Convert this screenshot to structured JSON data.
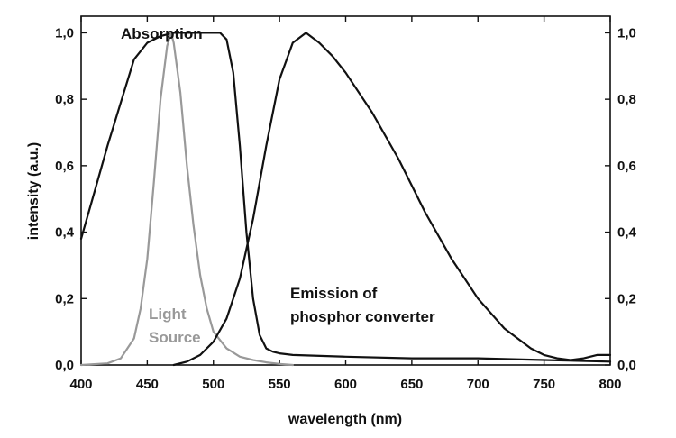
{
  "chart_data": {
    "type": "line",
    "title": "",
    "xlabel": "wavelength (nm)",
    "ylabel": "intensity (a.u.)",
    "xlim": [
      400,
      800
    ],
    "ylim": [
      0,
      1.05
    ],
    "x_ticks": [
      400,
      450,
      500,
      550,
      600,
      650,
      700,
      750,
      800
    ],
    "x_tick_labels": [
      "400",
      "450",
      "500",
      "550",
      "600",
      "650",
      "700",
      "750",
      "800"
    ],
    "y_ticks": [
      0,
      0.2,
      0.4,
      0.6,
      0.8,
      1.0
    ],
    "y_tick_labels": [
      "0,0",
      "0,2",
      "0,4",
      "0,6",
      "0,8",
      "1,0"
    ],
    "right_y_tick_labels": [
      "0,0",
      "0,2",
      "0,4",
      "0,6",
      "0,8",
      "1,0"
    ],
    "grid": false,
    "annotations": {
      "absorption": "Absorption",
      "light_source_line1": "Light",
      "light_source_line2": "Source",
      "emission_line1": "Emission of",
      "emission_line2": "phosphor converter"
    },
    "series": [
      {
        "color": "#111111",
        "x": [
          400,
          410,
          420,
          430,
          440,
          450,
          460,
          470,
          480,
          490,
          500,
          505,
          510,
          515,
          520,
          525,
          530,
          535,
          540,
          545,
          550,
          560,
          600,
          650,
          700,
          750,
          800
        ],
        "y": [
          0.38,
          0.52,
          0.66,
          0.79,
          0.92,
          0.97,
          0.99,
          1.0,
          1.0,
          1.0,
          1.0,
          1.0,
          0.98,
          0.88,
          0.66,
          0.4,
          0.2,
          0.09,
          0.05,
          0.04,
          0.035,
          0.03,
          0.025,
          0.02,
          0.02,
          0.015,
          0.01
        ]
      },
      {
        "color": "#999999",
        "x": [
          400,
          420,
          430,
          440,
          445,
          450,
          455,
          460,
          465,
          468,
          470,
          475,
          480,
          485,
          490,
          495,
          500,
          510,
          520,
          530,
          540,
          550,
          560
        ],
        "y": [
          0,
          0.005,
          0.02,
          0.08,
          0.17,
          0.32,
          0.55,
          0.8,
          0.96,
          1.0,
          0.97,
          0.82,
          0.6,
          0.42,
          0.27,
          0.17,
          0.1,
          0.05,
          0.025,
          0.015,
          0.008,
          0.003,
          0
        ]
      },
      {
        "color": "#111111",
        "x": [
          470,
          480,
          490,
          500,
          510,
          520,
          530,
          540,
          550,
          560,
          570,
          580,
          590,
          600,
          620,
          640,
          660,
          680,
          700,
          720,
          740,
          750,
          760,
          770,
          780,
          790,
          800
        ],
        "y": [
          0,
          0.01,
          0.03,
          0.07,
          0.14,
          0.26,
          0.44,
          0.66,
          0.86,
          0.97,
          1.0,
          0.97,
          0.93,
          0.88,
          0.76,
          0.62,
          0.46,
          0.32,
          0.2,
          0.11,
          0.05,
          0.03,
          0.02,
          0.015,
          0.02,
          0.03,
          0.03
        ]
      }
    ]
  }
}
